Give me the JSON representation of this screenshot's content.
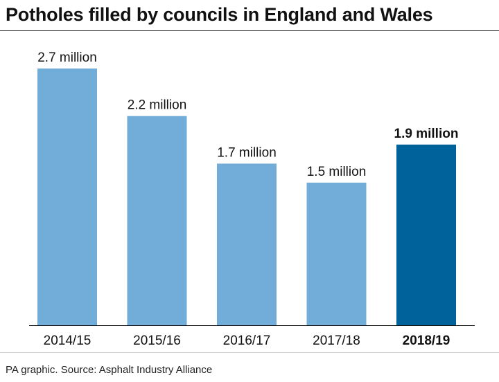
{
  "chart_data": {
    "type": "bar",
    "title": "Potholes filled by councils in England and Wales",
    "categories": [
      "2014/15",
      "2015/16",
      "2016/17",
      "2017/18",
      "2018/19"
    ],
    "values": [
      2.7,
      2.2,
      1.7,
      1.5,
      1.9
    ],
    "data_labels": [
      "2.7 million",
      "2.2 million",
      "1.7 million",
      "1.5 million",
      "1.9 million"
    ],
    "unit": "million",
    "xlabel": "",
    "ylabel": "",
    "ylim": [
      0,
      2.7
    ],
    "grid": false,
    "legend": "none",
    "highlight_index": 4
  },
  "colors": {
    "bar": "#72acd8",
    "highlight": "#00629b",
    "baseline": "#111111",
    "text": "#111111"
  },
  "footer": {
    "source": "PA graphic. Source: Asphalt Industry Alliance"
  }
}
